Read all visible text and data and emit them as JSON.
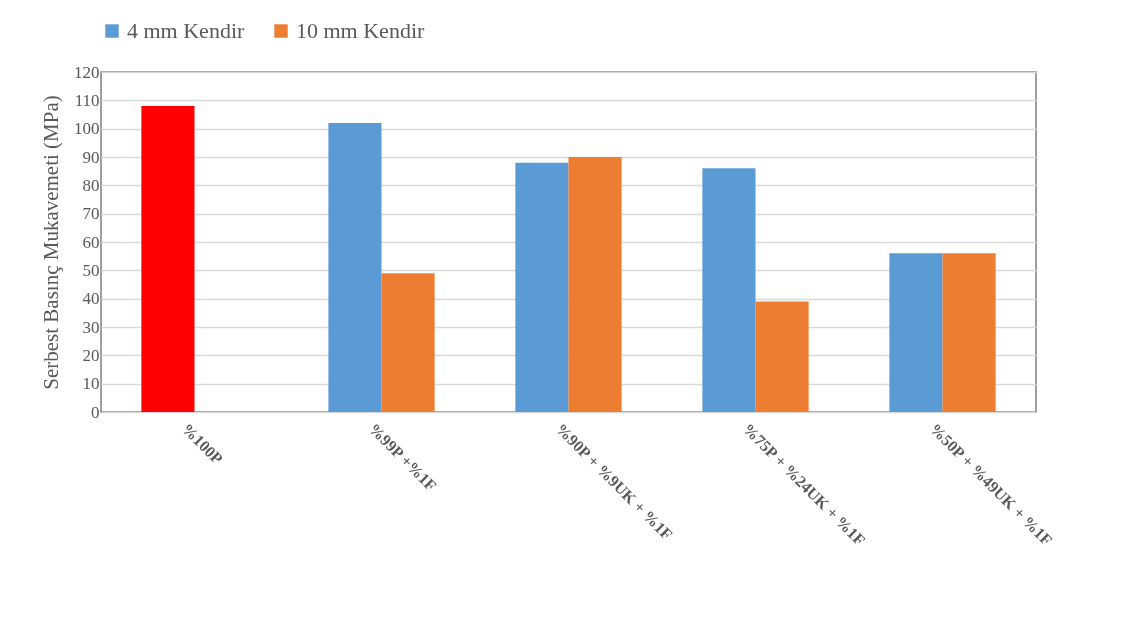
{
  "chart_data": {
    "type": "bar",
    "ylabel": "Serbest Basınç Mukavemeti (MPa)",
    "categories": [
      "%100P",
      "%99P +%1F",
      "%90P + %9UK + %1F",
      "%75P + %24UK + %1F",
      "%50P + %49UK + %1F"
    ],
    "series": [
      {
        "name": "4 mm Kendir",
        "color": "#5b9bd5",
        "colors": [
          "#ff0000",
          "#5b9bd5",
          "#5b9bd5",
          "#5b9bd5",
          "#5b9bd5"
        ],
        "values": [
          108,
          102,
          88,
          86,
          56
        ]
      },
      {
        "name": "10 mm Kendir",
        "color": "#ed7d31",
        "values": [
          null,
          49,
          90,
          39,
          56
        ]
      }
    ],
    "ylim": [
      0,
      120
    ],
    "yticks": [
      0,
      10,
      20,
      30,
      40,
      50,
      60,
      70,
      80,
      90,
      100,
      110,
      120
    ],
    "grid": "y",
    "legend": "top"
  }
}
